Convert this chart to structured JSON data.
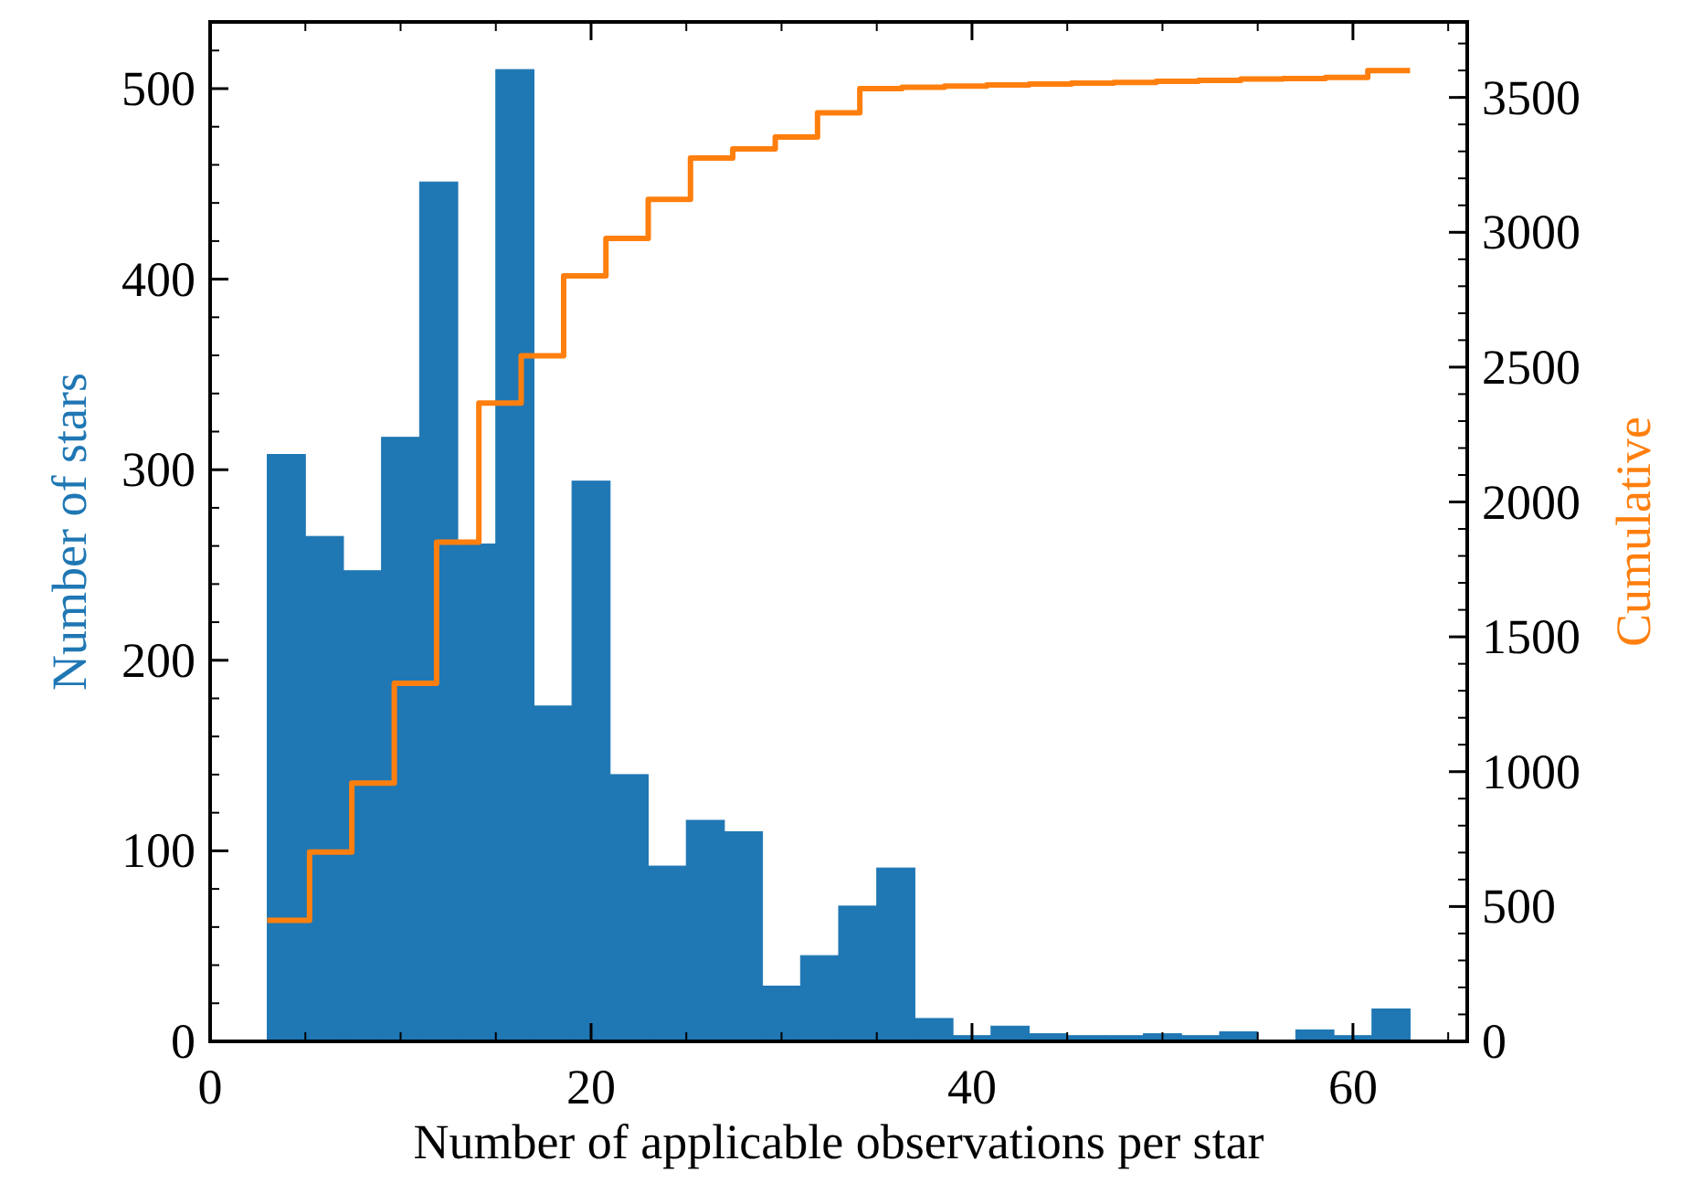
{
  "chart_data": {
    "type": "histogram",
    "xlabel": "Number of applicable observations per star",
    "ylabel": "Number of stars",
    "y2label": "Cumulative",
    "xlim": [
      0,
      66
    ],
    "xticks": [
      0,
      20,
      40,
      60
    ],
    "ylim": [
      0,
      535
    ],
    "yticks": [
      0,
      100,
      200,
      300,
      400,
      500
    ],
    "y2lim": [
      0,
      3780
    ],
    "y2ticks": [
      0,
      500,
      1000,
      1500,
      2000,
      2500,
      3000,
      3500
    ],
    "grid": false,
    "series": [
      {
        "color": "#1f77b4",
        "bins": [
          3,
          5,
          7,
          9,
          11,
          13,
          15,
          17,
          19,
          21,
          23,
          25,
          27,
          29,
          31,
          33,
          35,
          37,
          39,
          41,
          43,
          45,
          47,
          49,
          51,
          53,
          55,
          57,
          59,
          61,
          63
        ],
        "values": [
          308,
          265,
          247,
          317,
          451,
          261,
          510,
          176,
          294,
          140,
          92,
          116,
          110,
          29,
          45,
          71,
          91,
          12,
          3,
          8,
          4,
          3,
          3,
          4,
          3,
          5,
          0,
          6,
          3,
          17
        ]
      },
      {
        "type": "step",
        "axis": "y2",
        "color": "#ff7f0e",
        "x": [
          3,
          5.22,
          7.44,
          9.67,
          11.89,
          14.11,
          16.33,
          18.56,
          20.78,
          23,
          25.22,
          27.44,
          29.67,
          31.89,
          34.11,
          36.33,
          38.56,
          40.78,
          43,
          45.22,
          47.44,
          49.67,
          51.89,
          54.11,
          56.33,
          58.56,
          60.78,
          63
        ],
        "values": [
          449,
          702,
          958,
          1328,
          1851,
          2367,
          2542,
          2838,
          2977,
          3122,
          3275,
          3309,
          3353,
          3443,
          3533,
          3538,
          3542,
          3546,
          3550,
          3553,
          3556,
          3560,
          3563,
          3568,
          3570,
          3574,
          3600,
          3600
        ]
      }
    ]
  }
}
